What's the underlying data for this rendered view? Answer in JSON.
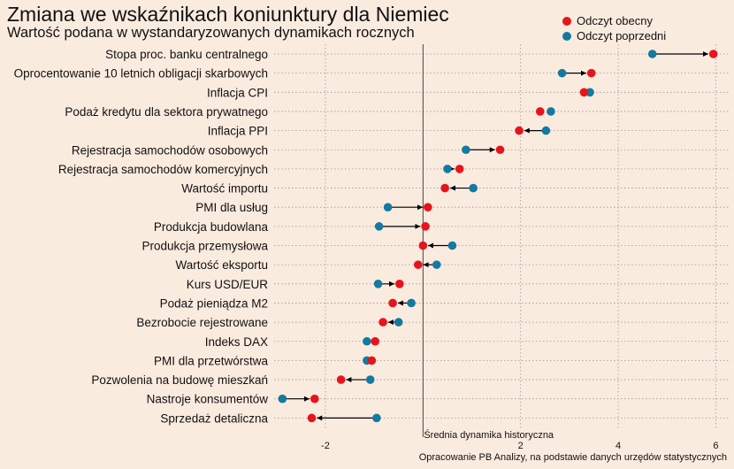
{
  "header": {
    "title": "Zmiana we wskaźnikach koniunktury dla Niemiec",
    "subtitle": "Wartość podana w wystandaryzowanych dynamikach rocznych"
  },
  "legend": {
    "current_label": "Odczyt obecny",
    "previous_label": "Odczyt poprzedni"
  },
  "colors": {
    "current": "#e8141b",
    "previous": "#147aa0",
    "background": "#faebdf",
    "arrow": "#000000",
    "grid": "#9a9a9a"
  },
  "chart_data": {
    "type": "dumbbell",
    "xlim": [
      -3.05,
      6.3
    ],
    "xticks": [
      -2,
      0,
      2,
      4,
      6
    ],
    "xtick_labels": [
      "-2",
      "0",
      "2",
      "4",
      "6"
    ],
    "reference_line": {
      "x": 0,
      "label": "Średnia dynamika historyczna"
    },
    "grid": "dotted",
    "legend_position": "top-right",
    "categories": [
      "Stopa proc. banku centralnego",
      "Oprocentowanie 10 letnich obligacji skarbowych",
      "Inflacja CPI",
      "Podaż kredytu dla sektora prywatnego",
      "Inflacja PPI",
      "Rejestracja samochodów osobowych",
      "Rejestracja samochodów komercyjnych",
      "Wartość importu",
      "PMI dla usług",
      "Produkcja budowlana",
      "Produkcja przemysłowa",
      "Wartość eksportu",
      "Kurs USD/EUR",
      "Podaż pieniądza M2",
      "Bezrobocie rejestrowane",
      "Indeks DAX",
      "PMI dla przetwórstwa",
      "Pozwolenia na budowę mieszkań",
      "Nastroje konsumentów",
      "Sprzedaż detaliczna"
    ],
    "series": [
      {
        "name": "Odczyt obecny",
        "values": [
          5.95,
          3.45,
          3.3,
          2.4,
          1.97,
          1.58,
          0.75,
          0.45,
          0.1,
          0.05,
          0.0,
          -0.1,
          -0.48,
          -0.62,
          -0.82,
          -0.98,
          -1.05,
          -1.68,
          -2.22,
          -2.28
        ]
      },
      {
        "name": "Odczyt poprzedni",
        "values": [
          4.7,
          2.85,
          3.42,
          2.62,
          2.52,
          0.88,
          0.5,
          1.03,
          -0.72,
          -0.9,
          0.6,
          0.28,
          -0.92,
          -0.24,
          -0.5,
          -1.15,
          -1.15,
          -1.08,
          -2.88,
          -0.95
        ]
      }
    ]
  },
  "footer": {
    "source": "Opracowanie PB Analizy, na podstawie danych urzędów statystycznych"
  }
}
